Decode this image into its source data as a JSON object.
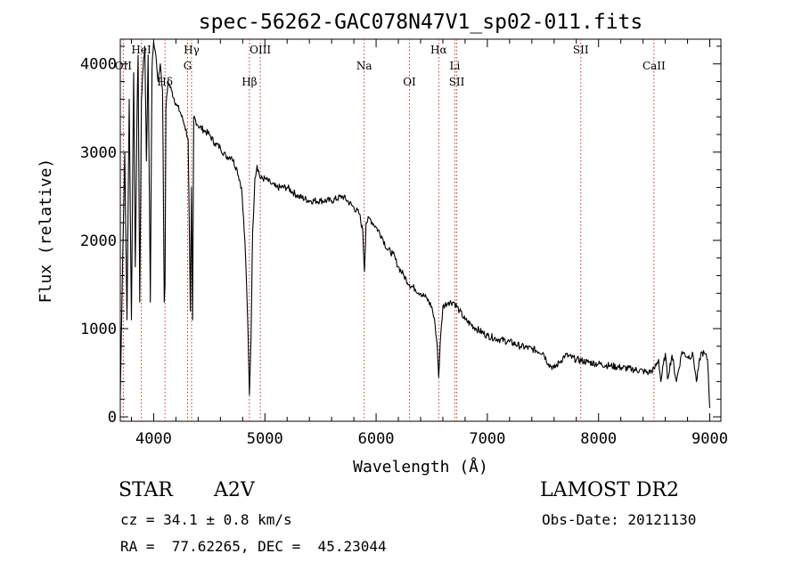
{
  "chart_data": {
    "type": "line",
    "title": "spec-56262-GAC078N47V1_sp02-011.fits",
    "xlabel": "Wavelength (Å)",
    "ylabel": "Flux (relative)",
    "xlim": [
      3700,
      9100
    ],
    "ylim": [
      -50,
      4280
    ],
    "x_ticks": [
      4000,
      5000,
      6000,
      7000,
      8000,
      9000
    ],
    "y_ticks": [
      0,
      1000,
      2000,
      3000,
      4000
    ],
    "grid": false,
    "series": [
      {
        "color": "#000000",
        "x": [
          3700,
          3720,
          3740,
          3760,
          3780,
          3800,
          3820,
          3835,
          3850,
          3860,
          3875,
          3890,
          3905,
          3920,
          3935,
          3950,
          3970,
          3985,
          4000,
          4020,
          4040,
          4060,
          4080,
          4095,
          4102,
          4110,
          4130,
          4160,
          4200,
          4240,
          4280,
          4310,
          4330,
          4340,
          4350,
          4360,
          4400,
          4450,
          4500,
          4550,
          4600,
          4650,
          4700,
          4750,
          4790,
          4820,
          4840,
          4850,
          4861,
          4875,
          4890,
          4910,
          4930,
          4960,
          5000,
          5050,
          5100,
          5200,
          5300,
          5400,
          5500,
          5600,
          5700,
          5780,
          5850,
          5880,
          5895,
          5910,
          5940,
          6000,
          6050,
          6100,
          6150,
          6200,
          6250,
          6300,
          6350,
          6400,
          6450,
          6500,
          6530,
          6550,
          6563,
          6575,
          6600,
          6650,
          6700,
          6750,
          6800,
          6900,
          7000,
          7100,
          7200,
          7300,
          7400,
          7500,
          7550,
          7600,
          7650,
          7700,
          7800,
          7900,
          8000,
          8100,
          8200,
          8300,
          8400,
          8450,
          8500,
          8540,
          8560,
          8600,
          8620,
          8660,
          8700,
          8750,
          8800,
          8850,
          8880,
          8920,
          8950,
          8980,
          9000
        ],
        "y": [
          250,
          1700,
          3000,
          1100,
          3600,
          1100,
          3900,
          1700,
          3400,
          4100,
          1300,
          3600,
          3950,
          4200,
          2900,
          4100,
          1300,
          3950,
          4250,
          4100,
          3800,
          4000,
          3700,
          1300,
          1500,
          3500,
          3800,
          3700,
          3550,
          3450,
          3300,
          3150,
          1200,
          2600,
          1100,
          3400,
          3300,
          3250,
          3200,
          3100,
          3050,
          2950,
          2950,
          2800,
          2600,
          2000,
          1300,
          900,
          250,
          900,
          2100,
          2700,
          2850,
          2700,
          2700,
          2650,
          2600,
          2600,
          2500,
          2450,
          2450,
          2450,
          2500,
          2400,
          2300,
          2100,
          1650,
          2200,
          2250,
          2150,
          2050,
          1900,
          1850,
          1700,
          1600,
          1500,
          1450,
          1400,
          1350,
          1250,
          1050,
          800,
          450,
          800,
          1250,
          1300,
          1300,
          1200,
          1100,
          1000,
          920,
          880,
          850,
          800,
          770,
          730,
          600,
          550,
          620,
          700,
          650,
          620,
          600,
          580,
          560,
          540,
          520,
          500,
          540,
          650,
          400,
          720,
          430,
          700,
          400,
          740,
          680,
          700,
          400,
          720,
          720,
          650,
          100
        ]
      }
    ],
    "lines": [
      {
        "name": "HeI",
        "x": 3889
      },
      {
        "name": "OII",
        "x": 3727
      },
      {
        "name": "Hδ",
        "x": 4102
      },
      {
        "name": "Hγ",
        "x": 4341
      },
      {
        "name": "G",
        "x": 4305
      },
      {
        "name": "Hβ",
        "x": 4861
      },
      {
        "name": "OIII",
        "x": 4959
      },
      {
        "name": "Na",
        "x": 5893
      },
      {
        "name": "OI",
        "x": 6300
      },
      {
        "name": "Hα",
        "x": 6563
      },
      {
        "name": "Li",
        "x": 6708
      },
      {
        "name": "SII",
        "x": 6725
      },
      {
        "name": "SII",
        "x": 7840
      },
      {
        "name": "CaII",
        "x": 8498
      }
    ]
  },
  "info": {
    "object_class": "STAR",
    "subclass": "A2V",
    "survey": "LAMOST DR2",
    "cz": "cz = 34.1 ± 0.8 km/s",
    "obs_date": "Obs-Date: 20121130",
    "coords": "RA =  77.62265, DEC =  45.23044"
  }
}
